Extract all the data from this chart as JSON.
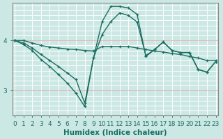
{
  "xlabel": "Humidex (Indice chaleur)",
  "bg_color": "#cce8e4",
  "line_color": "#1a6e62",
  "grid_color": "#ffffff",
  "grid_hcolor": "#e8b4b4",
  "axis_color": "#666666",
  "yticks": [
    3,
    4
  ],
  "xticks": [
    0,
    1,
    2,
    3,
    4,
    5,
    6,
    7,
    8,
    9,
    10,
    11,
    12,
    13,
    14,
    15,
    16,
    17,
    18,
    19,
    20,
    21,
    22,
    23
  ],
  "ylim": [
    2.5,
    4.75
  ],
  "xlim": [
    -0.3,
    23.3
  ],
  "line1_x": [
    0,
    1,
    2,
    3,
    4,
    5,
    6,
    7,
    8,
    9,
    10,
    11,
    12,
    13,
    14,
    15,
    16,
    17,
    18,
    19,
    20,
    21,
    22,
    23
  ],
  "line1_y": [
    4.0,
    4.0,
    3.95,
    3.9,
    3.87,
    3.85,
    3.83,
    3.82,
    3.8,
    3.79,
    3.88,
    3.88,
    3.88,
    3.88,
    3.85,
    3.82,
    3.79,
    3.77,
    3.74,
    3.72,
    3.68,
    3.65,
    3.6,
    3.6
  ],
  "line2_x": [
    0,
    1,
    2,
    3,
    4,
    5,
    6,
    7,
    8,
    9,
    10,
    11,
    12,
    13,
    14,
    15,
    16,
    17,
    18,
    19,
    20,
    21,
    22,
    23
  ],
  "line2_y": [
    4.0,
    3.95,
    3.85,
    3.72,
    3.6,
    3.48,
    3.35,
    3.22,
    2.75,
    3.65,
    4.12,
    4.38,
    4.55,
    4.5,
    4.37,
    3.7,
    3.82,
    3.97,
    3.8,
    3.76,
    3.76,
    3.42,
    3.37,
    3.58
  ],
  "line3_x": [
    0,
    1,
    2,
    3,
    4,
    5,
    6,
    7,
    8,
    9,
    10,
    11,
    12,
    13,
    14,
    15,
    16,
    17,
    18,
    19,
    20,
    21,
    22,
    23
  ],
  "line3_y": [
    4.0,
    3.92,
    3.8,
    3.62,
    3.48,
    3.32,
    3.15,
    2.95,
    2.68,
    3.65,
    4.38,
    4.68,
    4.68,
    4.65,
    4.52,
    3.68,
    3.82,
    3.97,
    3.8,
    3.76,
    3.76,
    3.42,
    3.37,
    3.58
  ],
  "tick_fontsize": 6.5,
  "label_fontsize": 7.5
}
